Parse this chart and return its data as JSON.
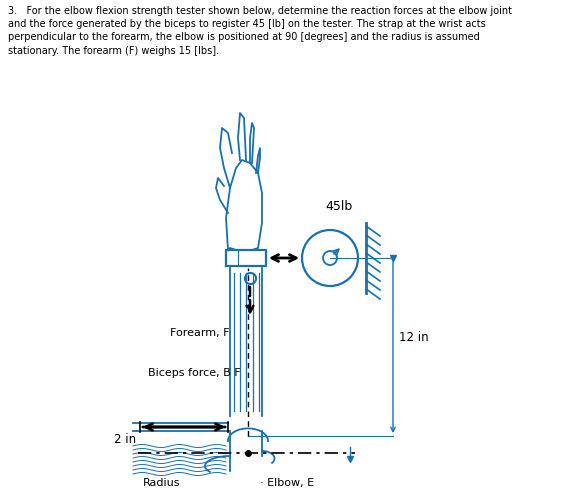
{
  "title_text": "3.   For the elbow flexion strength tester shown below, determine the reaction forces at the elbow joint\nand the force generated by the biceps to register 45 [lb] on the tester. The strap at the wrist acts\nperpendicular to the forearm, the elbow is positioned at 90 [degrees] and the radius is assumed\nstationary. The forearm (F) weighs 15 [lbs].",
  "label_45lb": "45lb",
  "label_12in": "12 in",
  "label_2in": "2 in",
  "label_forearm": "Forearm, F",
  "label_biceps": "Biceps force, B F",
  "label_radius": "Radius",
  "label_elbow": "Elbow, E",
  "hand_color": "#1a6faf",
  "arrow_color": "#000000",
  "dim_color": "#1a6faf",
  "background": "#ffffff",
  "text_color": "#000000"
}
